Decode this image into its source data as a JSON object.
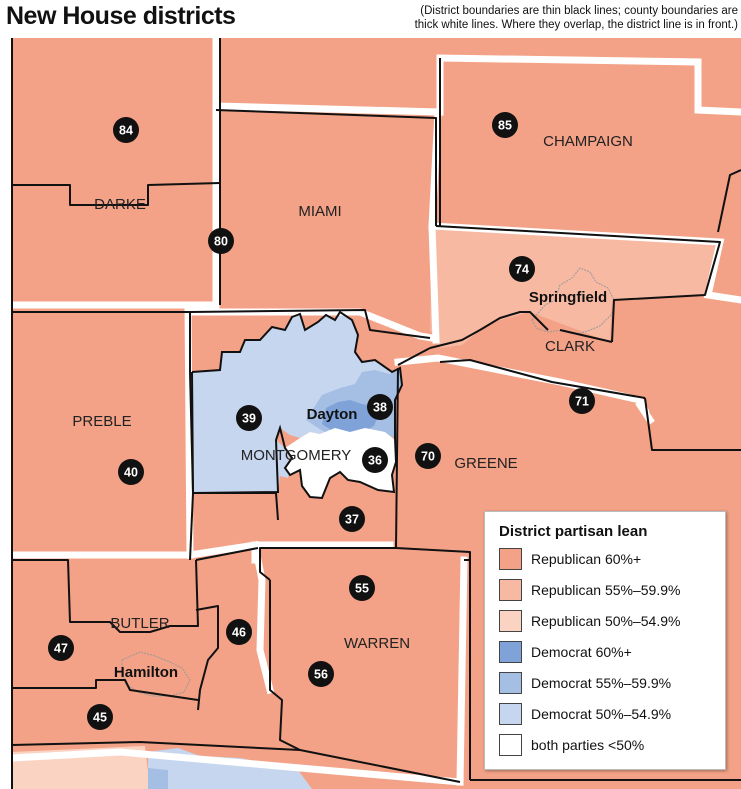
{
  "header": {
    "title": "New  House districts",
    "note_line1": "(District boundaries are thin black lines; county boundaries are",
    "note_line2": "thick white lines. Where they overlap, the district line is in front.)"
  },
  "counties": {
    "darke": "DARKE",
    "miami": "MIAMI",
    "champaign": "CHAMPAIGN",
    "clark": "CLARK",
    "preble": "PREBLE",
    "montgomery": "MONTGOMERY",
    "greene": "GREENE",
    "butler": "BUTLER",
    "warren": "WARREN"
  },
  "cities": {
    "springfield": "Springfield",
    "dayton": "Dayton",
    "hamilton": "Hamilton"
  },
  "districts": [
    {
      "number": "84",
      "lean": "Republican 60%+"
    },
    {
      "number": "85",
      "lean": "Republican 60%+"
    },
    {
      "number": "80",
      "lean": "Republican 60%+"
    },
    {
      "number": "74",
      "lean": "Republican 55%–59.9%"
    },
    {
      "number": "71",
      "lean": "Republican 60%+"
    },
    {
      "number": "39",
      "lean": "Democrat 50%–54.9%"
    },
    {
      "number": "38",
      "lean": "Democrat 55%–59.9%"
    },
    {
      "number": "36",
      "lean": "both parties <50%"
    },
    {
      "number": "40",
      "lean": "Republican 60%+"
    },
    {
      "number": "70",
      "lean": "Republican 60%+"
    },
    {
      "number": "37",
      "lean": "Republican 60%+"
    },
    {
      "number": "55",
      "lean": "Republican 60%+"
    },
    {
      "number": "46",
      "lean": "Republican 60%+"
    },
    {
      "number": "47",
      "lean": "Republican 60%+"
    },
    {
      "number": "56",
      "lean": "Republican 60%+"
    },
    {
      "number": "45",
      "lean": "Republican 60%+"
    }
  ],
  "legend": {
    "title": "District partisan lean",
    "items": [
      {
        "label": "Republican 60%+",
        "color": "#f3a287"
      },
      {
        "label": "Republican 55%–59.9%",
        "color": "#f7b9a2"
      },
      {
        "label": "Republican  50%–54.9%",
        "color": "#fbd3c3"
      },
      {
        "label": "Democrat 60%+",
        "color": "#7fa3d8"
      },
      {
        "label": "Democrat 55%–59.9%",
        "color": "#a5bfe4"
      },
      {
        "label": "Democrat 50%–54.9%",
        "color": "#c7d6ef"
      },
      {
        "label": "both parties <50%",
        "color": "#ffffff"
      }
    ]
  },
  "colors": {
    "rep60": "#f3a287",
    "rep55": "#f7b9a2",
    "rep50": "#fbd3c3",
    "dem60": "#7fa3d8",
    "dem55": "#a5bfe4",
    "dem50": "#c7d6ef",
    "tossup": "#ffffff"
  }
}
